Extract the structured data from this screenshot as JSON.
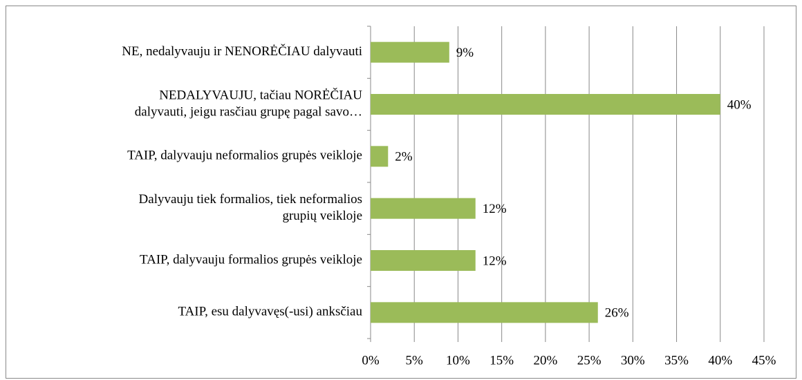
{
  "chart_data": {
    "type": "bar",
    "orientation": "horizontal",
    "categories": [
      [
        "NE, nedalyvauju ir NENORĖČIAU dalyvauti"
      ],
      [
        "NEDALYVAUJU, tačiau NORĖČIAU",
        "dalyvauti, jeigu rasčiau grupę pagal savo…"
      ],
      [
        "TAIP, dalyvauju neformalios grupės veikloje"
      ],
      [
        "Dalyvauju tiek formalios, tiek neformalios",
        "grupių veikloje"
      ],
      [
        "TAIP, dalyvauju formalios grupės veikloje"
      ],
      [
        "TAIP, esu dalyvavęs(-usi) anksčiau"
      ]
    ],
    "values": [
      9,
      40,
      2,
      12,
      12,
      26
    ],
    "value_labels": [
      "9%",
      "40%",
      "2%",
      "12%",
      "12%",
      "26%"
    ],
    "color": "#9bbb59",
    "xlim": [
      0,
      45
    ],
    "xticks": [
      {
        "value": 0,
        "label": "0%"
      },
      {
        "value": 5,
        "label": "5%"
      },
      {
        "value": 10,
        "label": "10%"
      },
      {
        "value": 15,
        "label": "15%"
      },
      {
        "value": 20,
        "label": "20%"
      },
      {
        "value": 25,
        "label": "25%"
      },
      {
        "value": 30,
        "label": "30%"
      },
      {
        "value": 35,
        "label": "35%"
      },
      {
        "value": 40,
        "label": "40%"
      },
      {
        "value": 45,
        "label": "45%"
      }
    ],
    "grid": true
  }
}
